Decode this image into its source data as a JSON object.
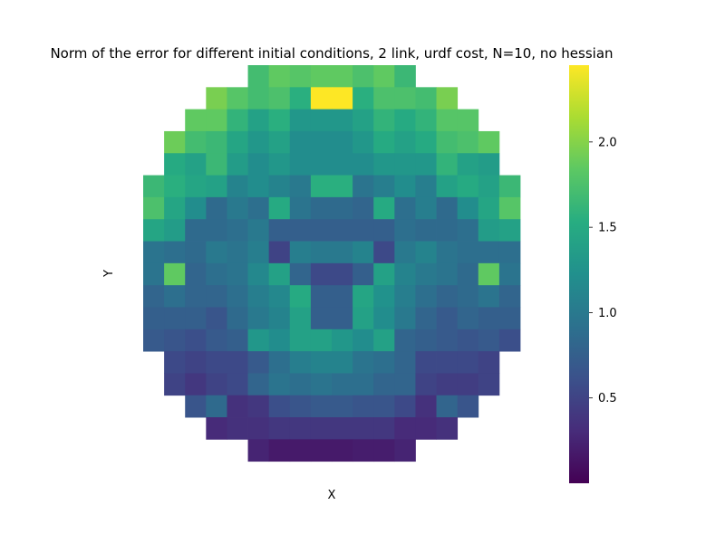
{
  "chart_data": {
    "type": "heatmap",
    "title": "Norm of the error for different initial conditions, 2 link, urdf cost, N=10, no hessian",
    "xlabel": "X",
    "ylabel": "Y",
    "colormap": "viridis",
    "colorbar": {
      "min": 0.0,
      "max": 2.45,
      "ticks": [
        0.5,
        1.0,
        1.5,
        2.0
      ],
      "tick_labels": [
        "0.5",
        "1.0",
        "1.5",
        "2.0"
      ]
    },
    "grid_rows": 19,
    "grid_cols": 18,
    "values": [
      [
        null,
        null,
        null,
        null,
        null,
        1.7,
        1.85,
        1.8,
        1.85,
        1.85,
        1.75,
        1.85,
        1.65,
        null,
        null,
        null,
        null,
        null
      ],
      [
        null,
        null,
        null,
        1.95,
        1.8,
        1.7,
        1.75,
        1.55,
        2.45,
        2.45,
        1.55,
        1.75,
        1.75,
        1.7,
        1.95,
        null,
        null,
        null
      ],
      [
        null,
        null,
        1.85,
        1.85,
        1.6,
        1.4,
        1.55,
        1.3,
        1.3,
        1.3,
        1.4,
        1.6,
        1.5,
        1.6,
        1.8,
        1.8,
        null,
        null
      ],
      [
        null,
        1.9,
        1.7,
        1.65,
        1.45,
        1.3,
        1.4,
        1.2,
        1.2,
        1.2,
        1.3,
        1.5,
        1.4,
        1.5,
        1.7,
        1.75,
        1.85,
        null
      ],
      [
        null,
        1.5,
        1.4,
        1.65,
        1.35,
        1.2,
        1.3,
        1.2,
        1.2,
        1.2,
        1.2,
        1.3,
        1.3,
        1.3,
        1.6,
        1.4,
        1.35,
        null
      ],
      [
        1.65,
        1.55,
        1.45,
        1.4,
        1.1,
        1.2,
        1.1,
        1.0,
        1.55,
        1.55,
        0.95,
        1.05,
        1.2,
        1.05,
        1.4,
        1.5,
        1.4,
        1.65
      ],
      [
        1.75,
        1.45,
        1.2,
        0.85,
        1.0,
        0.9,
        1.5,
        0.95,
        0.85,
        0.85,
        0.8,
        1.5,
        0.9,
        1.05,
        0.85,
        1.2,
        1.45,
        1.8
      ],
      [
        1.45,
        1.35,
        0.85,
        0.85,
        0.9,
        1.0,
        0.75,
        0.75,
        0.75,
        0.75,
        0.75,
        0.75,
        0.9,
        0.85,
        0.85,
        0.9,
        1.35,
        1.4
      ],
      [
        0.95,
        0.9,
        0.85,
        1.0,
        0.95,
        1.05,
        0.5,
        1.05,
        1.0,
        1.0,
        1.1,
        0.55,
        1.0,
        1.1,
        0.95,
        0.9,
        0.9,
        0.9
      ],
      [
        0.95,
        1.85,
        0.8,
        0.9,
        0.95,
        1.15,
        1.4,
        0.8,
        0.55,
        0.55,
        0.75,
        1.4,
        1.1,
        1.0,
        0.95,
        0.85,
        1.85,
        0.95
      ],
      [
        0.8,
        0.9,
        0.8,
        0.8,
        0.9,
        1.05,
        1.15,
        1.5,
        0.75,
        0.75,
        1.45,
        1.25,
        1.05,
        0.9,
        0.8,
        0.85,
        0.95,
        0.8
      ],
      [
        0.75,
        0.75,
        0.75,
        0.65,
        0.85,
        1.0,
        1.1,
        1.4,
        0.75,
        0.75,
        1.4,
        1.2,
        1.0,
        0.8,
        0.7,
        0.8,
        0.75,
        0.75
      ],
      [
        0.7,
        0.65,
        0.6,
        0.7,
        0.75,
        1.3,
        1.2,
        1.4,
        1.4,
        1.3,
        1.2,
        1.4,
        0.8,
        0.75,
        0.7,
        0.65,
        0.7,
        0.6
      ],
      [
        null,
        0.55,
        0.5,
        0.55,
        0.55,
        0.7,
        0.9,
        1.05,
        1.1,
        1.1,
        0.95,
        0.9,
        0.8,
        0.55,
        0.55,
        0.55,
        0.5,
        null
      ],
      [
        null,
        0.5,
        0.4,
        0.5,
        0.55,
        0.8,
        0.95,
        0.9,
        0.95,
        0.9,
        0.9,
        0.8,
        0.8,
        0.5,
        0.45,
        0.45,
        0.5,
        null
      ],
      [
        null,
        null,
        0.65,
        0.85,
        0.35,
        0.4,
        0.6,
        0.65,
        0.7,
        0.7,
        0.65,
        0.65,
        0.55,
        0.35,
        0.8,
        0.65,
        null,
        null
      ],
      [
        null,
        null,
        null,
        0.3,
        0.35,
        0.35,
        0.4,
        0.4,
        0.4,
        0.4,
        0.4,
        0.4,
        0.3,
        0.3,
        0.35,
        null,
        null,
        null
      ],
      [
        null,
        null,
        null,
        null,
        null,
        0.25,
        0.18,
        0.18,
        0.18,
        0.18,
        0.2,
        0.2,
        0.25,
        null,
        null,
        null,
        null,
        null
      ],
      [
        null,
        null,
        null,
        null,
        null,
        null,
        null,
        null,
        null,
        null,
        null,
        null,
        null,
        null,
        null,
        null,
        null,
        null
      ]
    ]
  }
}
